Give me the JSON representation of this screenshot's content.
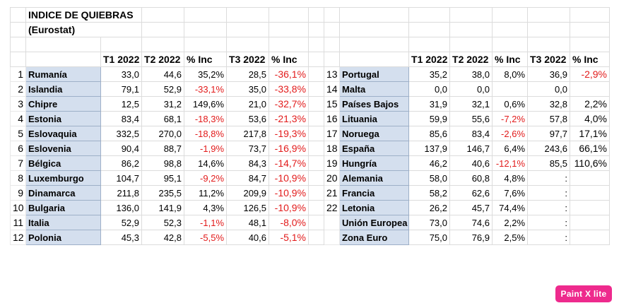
{
  "title_line1": "INDICE DE QUIEBRAS",
  "title_line2": "(Eurostat)",
  "headers": {
    "t1": "T1 2022",
    "t2": "T2 2022",
    "inc": "% Inc",
    "t3": "T3 2022",
    "inc3": "% Inc"
  },
  "left_rows": [
    {
      "idx": "1",
      "name": "Rumanía",
      "t1": "33,0",
      "t2": "44,6",
      "inc": "35,2%",
      "t3": "28,5",
      "inc3": "-36,1%"
    },
    {
      "idx": "2",
      "name": "Islandia",
      "t1": "79,1",
      "t2": "52,9",
      "inc": "-33,1%",
      "t3": "35,0",
      "inc3": "-33,8%"
    },
    {
      "idx": "3",
      "name": "Chipre",
      "t1": "12,5",
      "t2": "31,2",
      "inc": "149,6%",
      "t3": "21,0",
      "inc3": "-32,7%"
    },
    {
      "idx": "4",
      "name": "Estonia",
      "t1": "83,4",
      "t2": "68,1",
      "inc": "-18,3%",
      "t3": "53,6",
      "inc3": "-21,3%"
    },
    {
      "idx": "5",
      "name": "Eslovaquia",
      "t1": "332,5",
      "t2": "270,0",
      "inc": "-18,8%",
      "t3": "217,8",
      "inc3": "-19,3%"
    },
    {
      "idx": "6",
      "name": "Eslovenia",
      "t1": "90,4",
      "t2": "88,7",
      "inc": "-1,9%",
      "t3": "73,7",
      "inc3": "-16,9%"
    },
    {
      "idx": "7",
      "name": "Bélgica",
      "t1": "86,2",
      "t2": "98,8",
      "inc": "14,6%",
      "t3": "84,3",
      "inc3": "-14,7%"
    },
    {
      "idx": "8",
      "name": "Luxemburgo",
      "t1": "104,7",
      "t2": "95,1",
      "inc": "-9,2%",
      "t3": "84,7",
      "inc3": "-10,9%"
    },
    {
      "idx": "9",
      "name": "Dinamarca",
      "t1": "211,8",
      "t2": "235,5",
      "inc": "11,2%",
      "t3": "209,9",
      "inc3": "-10,9%"
    },
    {
      "idx": "10",
      "name": "Bulgaria",
      "t1": "136,0",
      "t2": "141,9",
      "inc": "4,3%",
      "t3": "126,5",
      "inc3": "-10,9%"
    },
    {
      "idx": "11",
      "name": "Italia",
      "t1": "52,9",
      "t2": "52,3",
      "inc": "-1,1%",
      "t3": "48,1",
      "inc3": "-8,0%"
    },
    {
      "idx": "12",
      "name": "Polonia",
      "t1": "45,3",
      "t2": "42,8",
      "inc": "-5,5%",
      "t3": "40,6",
      "inc3": "-5,1%"
    }
  ],
  "right_rows": [
    {
      "idx": "13",
      "name": "Portugal",
      "t1": "35,2",
      "t2": "38,0",
      "inc": "8,0%",
      "t3": "36,9",
      "inc3": "-2,9%"
    },
    {
      "idx": "14",
      "name": "Malta",
      "t1": "0,0",
      "t2": "0,0",
      "inc": "",
      "t3": "0,0",
      "inc3": ""
    },
    {
      "idx": "15",
      "name": "Países Bajos",
      "t1": "31,9",
      "t2": "32,1",
      "inc": "0,6%",
      "t3": "32,8",
      "inc3": "2,2%"
    },
    {
      "idx": "16",
      "name": "Lituania",
      "t1": "59,9",
      "t2": "55,6",
      "inc": "-7,2%",
      "t3": "57,8",
      "inc3": "4,0%"
    },
    {
      "idx": "17",
      "name": "Noruega",
      "t1": "85,6",
      "t2": "83,4",
      "inc": "-2,6%",
      "t3": "97,7",
      "inc3": "17,1%"
    },
    {
      "idx": "18",
      "name": "España",
      "t1": "137,9",
      "t2": "146,7",
      "inc": "6,4%",
      "t3": "243,6",
      "inc3": "66,1%"
    },
    {
      "idx": "19",
      "name": "Hungría",
      "t1": "46,2",
      "t2": "40,6",
      "inc": "-12,1%",
      "t3": "85,5",
      "inc3": "110,6%"
    },
    {
      "idx": "20",
      "name": "Alemania",
      "t1": "58,0",
      "t2": "60,8",
      "inc": "4,8%",
      "t3": ":",
      "inc3": ""
    },
    {
      "idx": "21",
      "name": "Francia",
      "t1": "58,2",
      "t2": "62,6",
      "inc": "7,6%",
      "t3": ":",
      "inc3": ""
    },
    {
      "idx": "22",
      "name": "Letonia",
      "t1": "26,2",
      "t2": "45,7",
      "inc": "74,4%",
      "t3": ":",
      "inc3": ""
    },
    {
      "idx": "",
      "name": "Unión Europea",
      "t1": "73,0",
      "t2": "74,6",
      "inc": "2,2%",
      "t3": ":",
      "inc3": ""
    },
    {
      "idx": "",
      "name": "Zona Euro",
      "t1": "75,0",
      "t2": "76,9",
      "inc": "2,5%",
      "t3": ":",
      "inc3": ""
    }
  ],
  "badge": "Paint X lite",
  "colors": {
    "name_bg": "#d4dfee",
    "negative": "#e21b1b",
    "badge_bg": "#ee2a8d"
  }
}
